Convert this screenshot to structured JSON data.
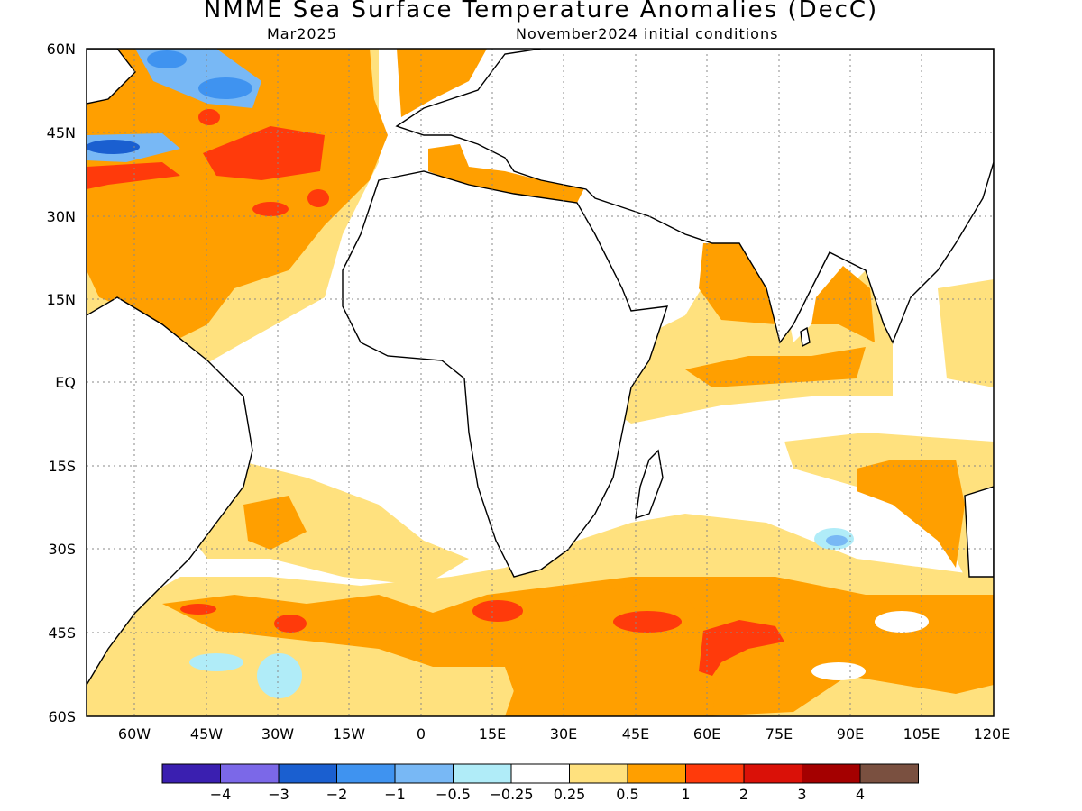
{
  "header": {
    "title": "NMME Sea Surface Temperature Anomalies (DecC)",
    "valid_month": "Mar2025",
    "init": "November2024 initial conditions"
  },
  "chart_data": {
    "type": "heatmap",
    "title": "NMME Sea Surface Temperature Anomalies (DecC)",
    "lat_ticks": [
      "60N",
      "45N",
      "30N",
      "15N",
      "EQ",
      "15S",
      "30S",
      "45S",
      "60S"
    ],
    "lon_ticks": [
      "60W",
      "45W",
      "30W",
      "15W",
      "0",
      "15E",
      "30E",
      "45E",
      "60E",
      "75E",
      "90E",
      "105E",
      "120E"
    ],
    "lat_range": [
      -60,
      60
    ],
    "lon_range": [
      -70,
      120
    ],
    "grid": true,
    "colorbar": {
      "colors": [
        "#3a1fb0",
        "#7b68e8",
        "#1a5fd0",
        "#3f93f0",
        "#78b8f5",
        "#b0ecf8",
        "#ffffff",
        "#ffe17e",
        "#ff9f00",
        "#ff3a0b",
        "#da1108",
        "#a40000",
        "#7a5040"
      ],
      "labels": [
        "−4",
        "−3",
        "−2",
        "−1",
        "−0.5",
        "−0.25",
        "0.25",
        "0.5",
        "1",
        "2",
        "3",
        "4"
      ]
    }
  }
}
